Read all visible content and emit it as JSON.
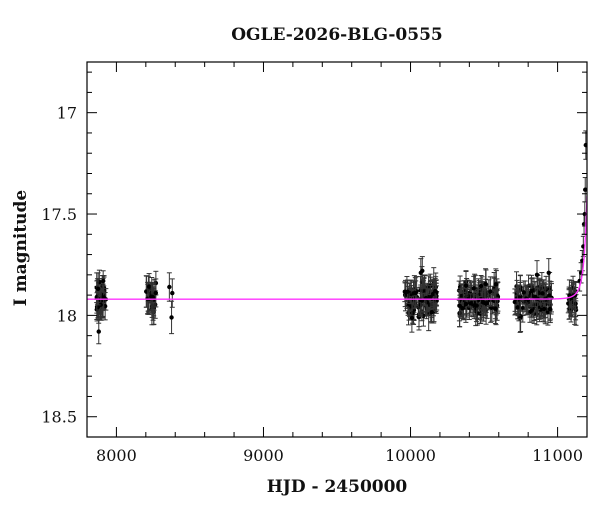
{
  "chart_data": {
    "type": "scatter",
    "title": "OGLE-2026-BLG-0555",
    "xlabel": "HJD - 2450000",
    "ylabel": "I magnitude",
    "xlim": [
      7800,
      11200
    ],
    "ylim": [
      18.6,
      16.75
    ],
    "y_inverted": true,
    "x_major_ticks": [
      8000,
      9000,
      10000,
      11000
    ],
    "x_minor_step": 200,
    "y_major_ticks": [
      17,
      17.5,
      18,
      18.5
    ],
    "y_minor_step": 0.1,
    "x_tick_labels": [
      "8000",
      "9000",
      "10000",
      "11000"
    ],
    "y_tick_labels": [
      "17",
      "17.5",
      "18",
      "18.5"
    ],
    "grid": false,
    "baseline_mag": 17.92,
    "model_color": "#ff33ff",
    "point_color": "#000000",
    "errorbar_color": "#333333",
    "seasons": [
      {
        "start": 7860,
        "end": 7930,
        "n": 45
      },
      {
        "start": 8200,
        "end": 8270,
        "n": 32
      },
      {
        "start": 9960,
        "end": 10180,
        "n": 95
      },
      {
        "start": 10330,
        "end": 10600,
        "n": 110
      },
      {
        "start": 10700,
        "end": 10960,
        "n": 95
      },
      {
        "start": 11070,
        "end": 11130,
        "n": 25
      }
    ],
    "points": [
      {
        "x": 8360,
        "y": 17.86,
        "err": 0.07
      },
      {
        "x": 8380,
        "y": 17.89,
        "err": 0.07
      },
      {
        "x": 8375,
        "y": 18.01,
        "err": 0.08
      },
      {
        "x": 7880,
        "y": 18.08,
        "err": 0.06
      },
      {
        "x": 7910,
        "y": 17.83,
        "err": 0.05
      },
      {
        "x": 10070,
        "y": 17.79,
        "err": 0.07
      },
      {
        "x": 10080,
        "y": 17.78,
        "err": 0.07
      },
      {
        "x": 10860,
        "y": 17.8,
        "err": 0.07
      },
      {
        "x": 10940,
        "y": 17.79,
        "err": 0.07
      },
      {
        "x": 11150,
        "y": 17.83,
        "err": 0.05
      },
      {
        "x": 11160,
        "y": 17.79,
        "err": 0.05
      },
      {
        "x": 11168,
        "y": 17.73,
        "err": 0.05
      },
      {
        "x": 11175,
        "y": 17.66,
        "err": 0.05
      },
      {
        "x": 11180,
        "y": 17.55,
        "err": 0.05
      },
      {
        "x": 11185,
        "y": 17.5,
        "err": 0.06
      },
      {
        "x": 11188,
        "y": 17.38,
        "err": 0.06
      },
      {
        "x": 11192,
        "y": 17.16,
        "err": 0.07
      }
    ]
  }
}
